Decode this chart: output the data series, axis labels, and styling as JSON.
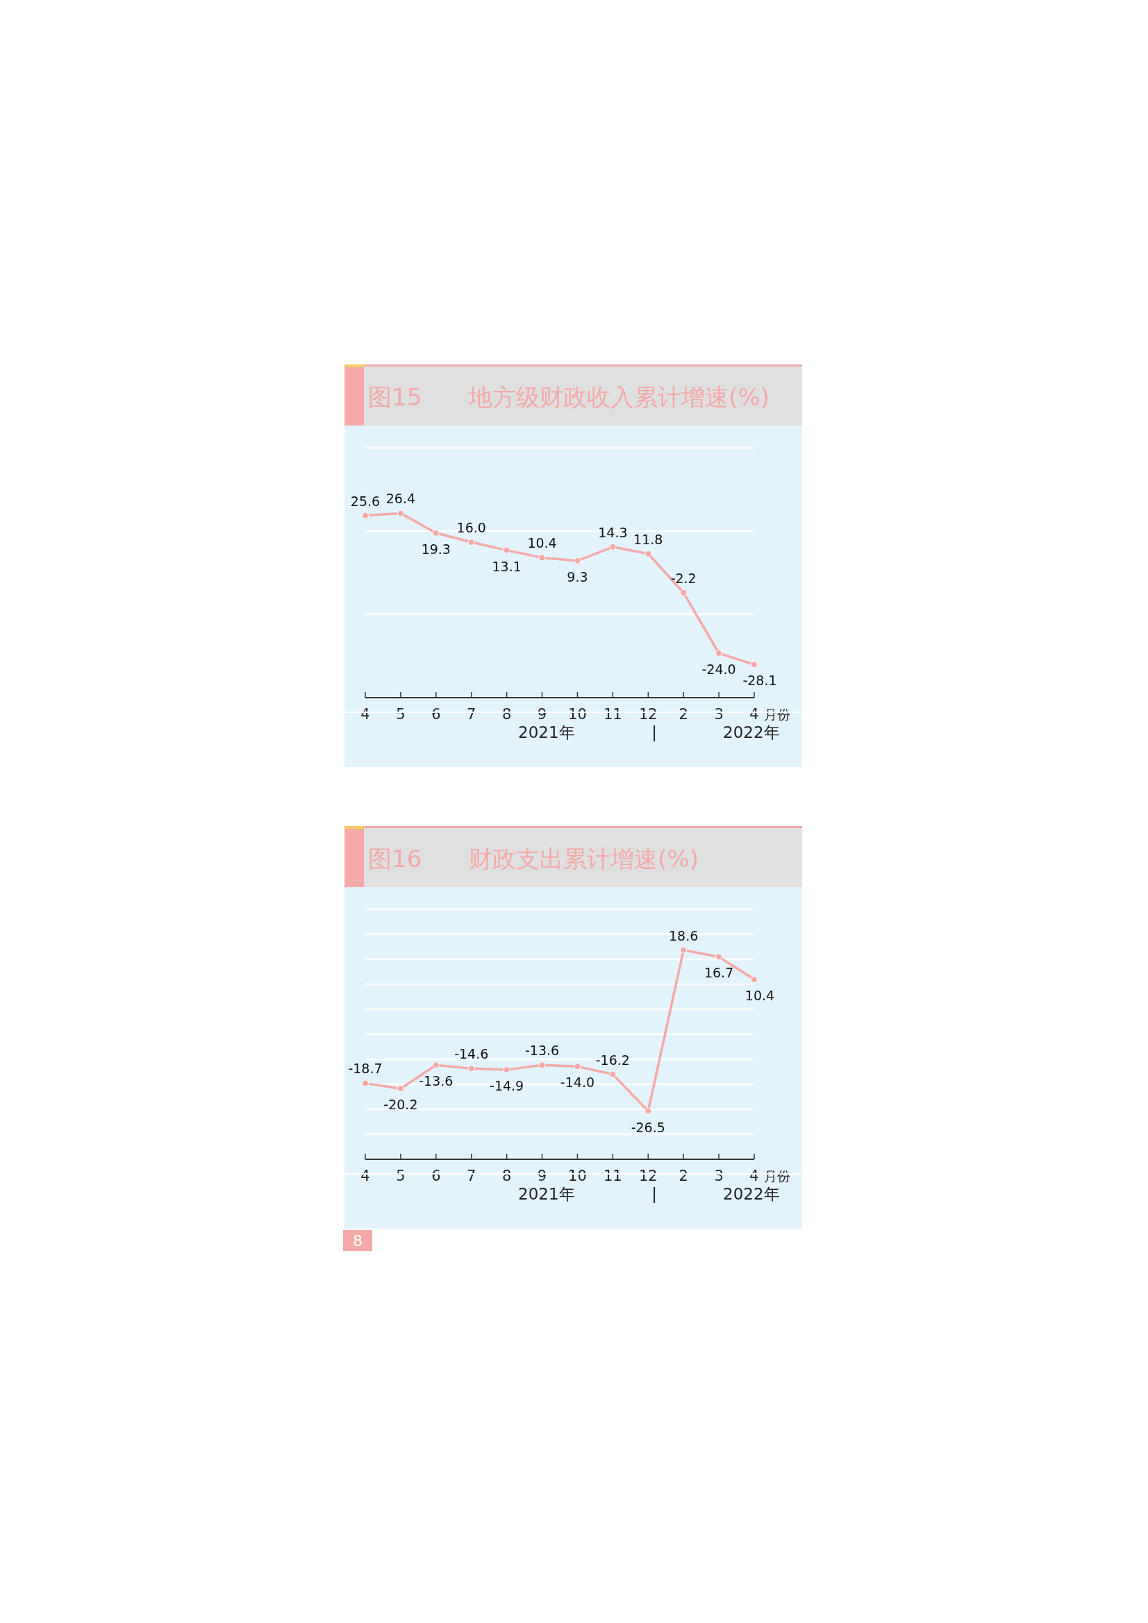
{
  "chart_data": [
    {
      "type": "line",
      "title": "图15　　地方级财政收入累计增速(%)",
      "xlabel": "月份",
      "categories": [
        "4",
        "5",
        "6",
        "7",
        "8",
        "9",
        "10",
        "11",
        "12",
        "2",
        "3",
        "4"
      ],
      "series": [
        {
          "color": "#f4a9a8",
          "values": [
            25.6,
            26.4,
            19.3,
            16.0,
            13.1,
            10.4,
            9.3,
            14.3,
            11.8,
            -2.2,
            -24.0,
            -28.1
          ],
          "value_labels": [
            "25.6",
            "26.4",
            "19.3",
            "16.0",
            "13.1",
            "10.4",
            "9.3",
            "14.3",
            "11.8",
            "-2.2",
            "-24.0",
            "-28.1"
          ]
        }
      ],
      "marker": "circle",
      "grid": "y",
      "ylim": [
        -40,
        50
      ],
      "yticks": [
        {
          "value": -40,
          "label": null
        },
        {
          "value": -10,
          "label": null
        },
        {
          "value": 20,
          "label": null
        },
        {
          "value": 50,
          "label": null
        }
      ],
      "annotations": [
        "2021年",
        "|",
        "2022年"
      ]
    },
    {
      "type": "line",
      "title": "图16　　财政支出累计增速(%)",
      "xlabel": "月份",
      "categories": [
        "4",
        "5",
        "6",
        "7",
        "8",
        "9",
        "10",
        "11",
        "12",
        "2",
        "3",
        "4"
      ],
      "series": [
        {
          "color": "#f4a9a8",
          "values": [
            -18.7,
            -20.2,
            -13.6,
            -14.6,
            -14.9,
            -13.6,
            -14.0,
            -16.2,
            -26.5,
            18.6,
            16.7,
            10.4
          ],
          "value_labels": [
            "-18.7",
            "-20.2",
            "-13.6",
            "-14.6",
            "-14.9",
            "-13.6",
            "-14.0",
            "-16.2",
            "-26.5",
            "18.6",
            "16.7",
            "10.4"
          ]
        }
      ],
      "marker": "circle",
      "grid": "y",
      "ylim": [
        -40,
        30
      ],
      "yticks": [
        {
          "value": -40,
          "label": null
        },
        {
          "value": -33,
          "label": null
        },
        {
          "value": -26,
          "label": null
        },
        {
          "value": -19,
          "label": null
        },
        {
          "value": -12,
          "label": null
        },
        {
          "value": -5,
          "label": null
        },
        {
          "value": 2,
          "label": null
        },
        {
          "value": 9,
          "label": null
        },
        {
          "value": 16,
          "label": null
        },
        {
          "value": 23,
          "label": null
        },
        {
          "value": 30,
          "label": null
        }
      ],
      "annotations": [
        "2021年",
        "|",
        "2022年",
        "8"
      ]
    }
  ]
}
